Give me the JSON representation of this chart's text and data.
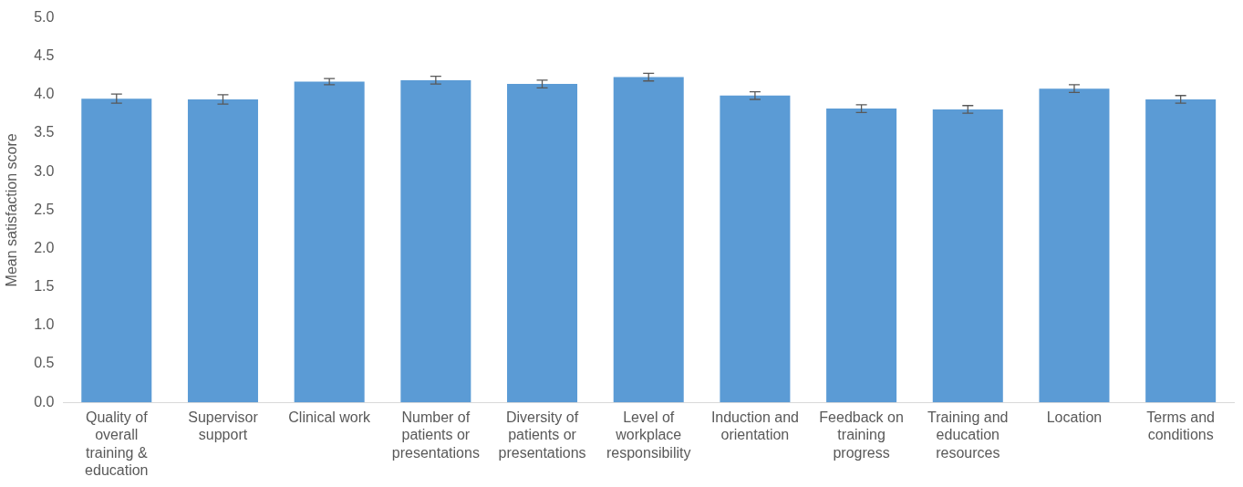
{
  "chart_data": {
    "type": "bar",
    "ylabel": "Mean satisfaction score",
    "categories": [
      "Quality of overall training & education",
      "Supervisor support",
      "Clinical work",
      "Number of patients or presentations",
      "Diversity of patients or presentations",
      "Level of workplace responsibility",
      "Induction and orientation",
      "Feedback on training progress",
      "Training and education resources",
      "Location",
      "Terms and conditions"
    ],
    "values": [
      3.95,
      3.94,
      4.17,
      4.19,
      4.14,
      4.23,
      3.99,
      3.82,
      3.81,
      4.08,
      3.94
    ],
    "errors": [
      0.06,
      0.06,
      0.04,
      0.05,
      0.05,
      0.05,
      0.05,
      0.05,
      0.05,
      0.05,
      0.05
    ],
    "color": "#5b9bd5",
    "ylim": [
      0,
      5
    ],
    "yticks": [
      {
        "value": 0,
        "label": "0.0"
      },
      {
        "value": 0.5,
        "label": "0.5"
      },
      {
        "value": 1,
        "label": "1.0"
      },
      {
        "value": 1.5,
        "label": "1.5"
      },
      {
        "value": 2,
        "label": "2.0"
      },
      {
        "value": 2.5,
        "label": "2.5"
      },
      {
        "value": 3,
        "label": "3.0"
      },
      {
        "value": 3.5,
        "label": "3.5"
      },
      {
        "value": 4,
        "label": "4.0"
      },
      {
        "value": 4.5,
        "label": "4.5"
      },
      {
        "value": 5,
        "label": "5.0"
      }
    ],
    "grid": false,
    "legend": false
  }
}
